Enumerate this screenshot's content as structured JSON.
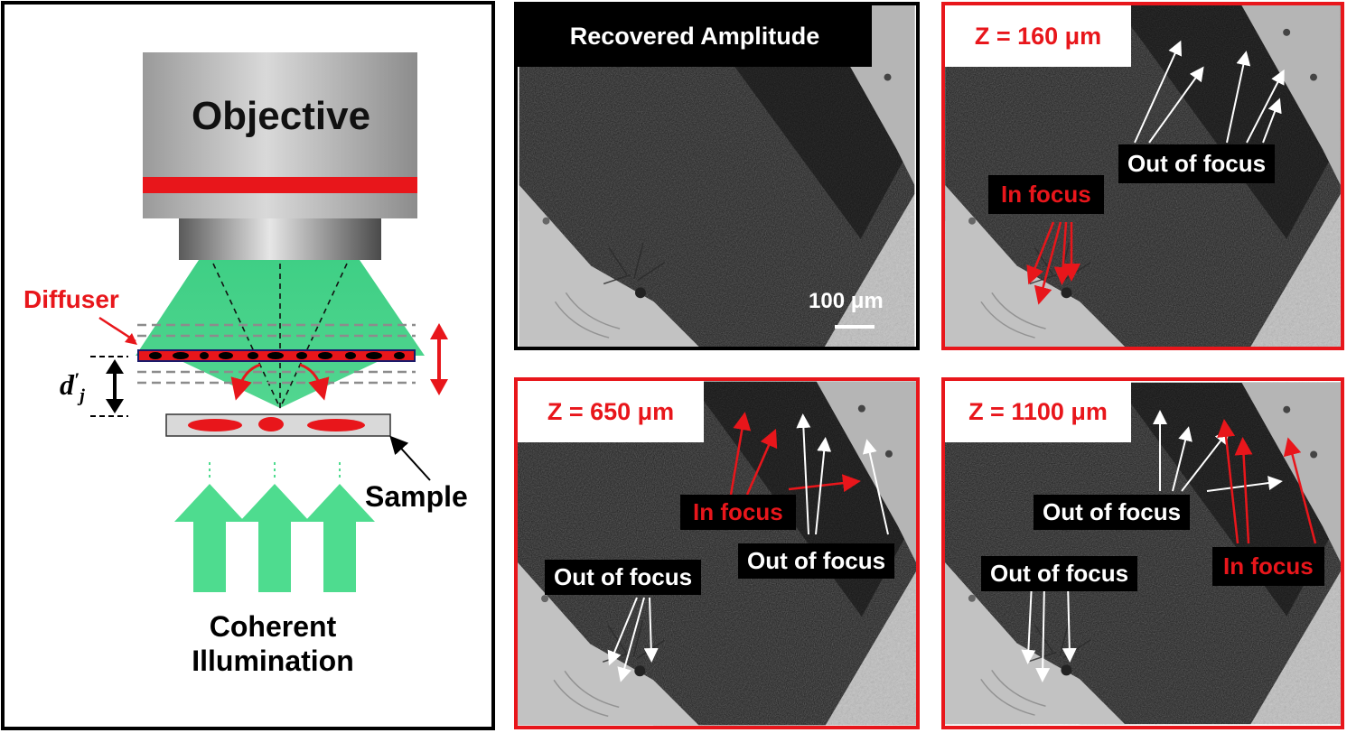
{
  "left_schematic": {
    "objective_label": "Objective",
    "diffuser_label": "Diffuser",
    "distance_label": "d",
    "distance_subscript": "j",
    "distance_prime": "′",
    "sample_label": "Sample",
    "illumination_line1": "Coherent",
    "illumination_line2": "Illumination"
  },
  "panels": {
    "recovered": {
      "title": "Recovered Amplitude",
      "scale_bar": "100 μm"
    },
    "z160": {
      "title": "Z = 160 μm",
      "out_of_focus": "Out of focus",
      "in_focus": "In focus"
    },
    "z650": {
      "title": "Z = 650 μm",
      "in_focus": "In focus",
      "out_of_focus_right": "Out of focus",
      "out_of_focus_left": "Out of focus"
    },
    "z1100": {
      "title": "Z = 1100 μm",
      "out_of_focus_top": "Out of focus",
      "out_of_focus_bottom": "Out of focus",
      "in_focus": "In focus"
    }
  },
  "colors": {
    "accent_red": "#e8161b",
    "beam_green": "#3fcf85",
    "arrow_green": "#4edc8f",
    "objective_gray": "#b8b8b8",
    "label_bg": "#000000",
    "panel_frame_black": "#000000",
    "panel_frame_red": "#e8161b"
  }
}
